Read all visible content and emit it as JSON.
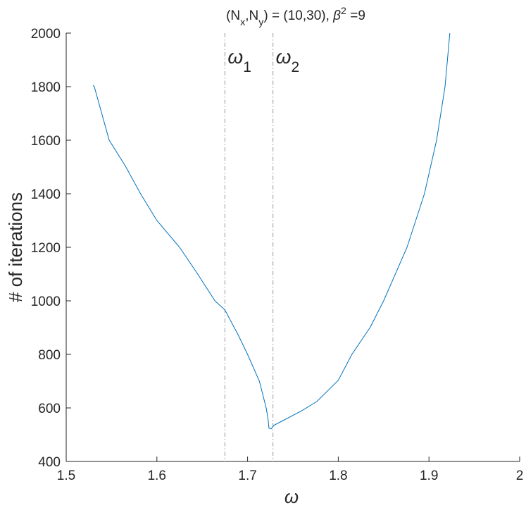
{
  "chart_data": {
    "type": "line",
    "title": [
      {
        "text": "(N"
      },
      {
        "text": "x",
        "shift": "sub"
      },
      {
        "text": ",N"
      },
      {
        "text": "y",
        "shift": "sub"
      },
      {
        "text": ") = (10,30),  "
      },
      {
        "text": "β",
        "style": "italic"
      },
      {
        "text": "2",
        "shift": "super"
      },
      {
        "text": " =9"
      }
    ],
    "xlabel": "ω",
    "ylabel": "# of iterations",
    "xlim": [
      1.5,
      2
    ],
    "ylim": [
      400,
      2000
    ],
    "xticks": [
      1.5,
      1.6,
      1.7,
      1.8,
      1.9,
      2
    ],
    "yticks": [
      400,
      600,
      800,
      1000,
      1200,
      1400,
      1600,
      1800,
      2000
    ],
    "series": [
      {
        "color": "#0072bd",
        "x": [
          1.5295,
          1.531,
          1.5474,
          1.565,
          1.582,
          1.6,
          1.625,
          1.645,
          1.664,
          1.675,
          1.69,
          1.7,
          1.713,
          1.7205,
          1.7225,
          1.7236,
          1.726,
          1.729,
          1.7376,
          1.76,
          1.7764,
          1.8,
          1.815,
          1.835,
          1.85,
          1.8758,
          1.895,
          1.9084,
          1.9177,
          1.923
        ],
        "values": [
          1805,
          1800,
          1600,
          1505,
          1400,
          1300,
          1200,
          1100,
          1000,
          966,
          870,
          800,
          700,
          600,
          560,
          524,
          522,
          535,
          550,
          590,
          624,
          703,
          800,
          900,
          1000,
          1200,
          1400,
          1600,
          1800,
          2000
        ]
      }
    ],
    "annotations": [
      {
        "x": 1.675,
        "color": "#999999",
        "label": [
          {
            "text": "ω",
            "style": "italic"
          },
          {
            "text": "1",
            "shift": "sub"
          }
        ]
      },
      {
        "x": 1.728,
        "color": "#999999",
        "label": [
          {
            "text": "ω",
            "style": "italic"
          },
          {
            "text": "2",
            "shift": "sub"
          }
        ]
      }
    ]
  }
}
